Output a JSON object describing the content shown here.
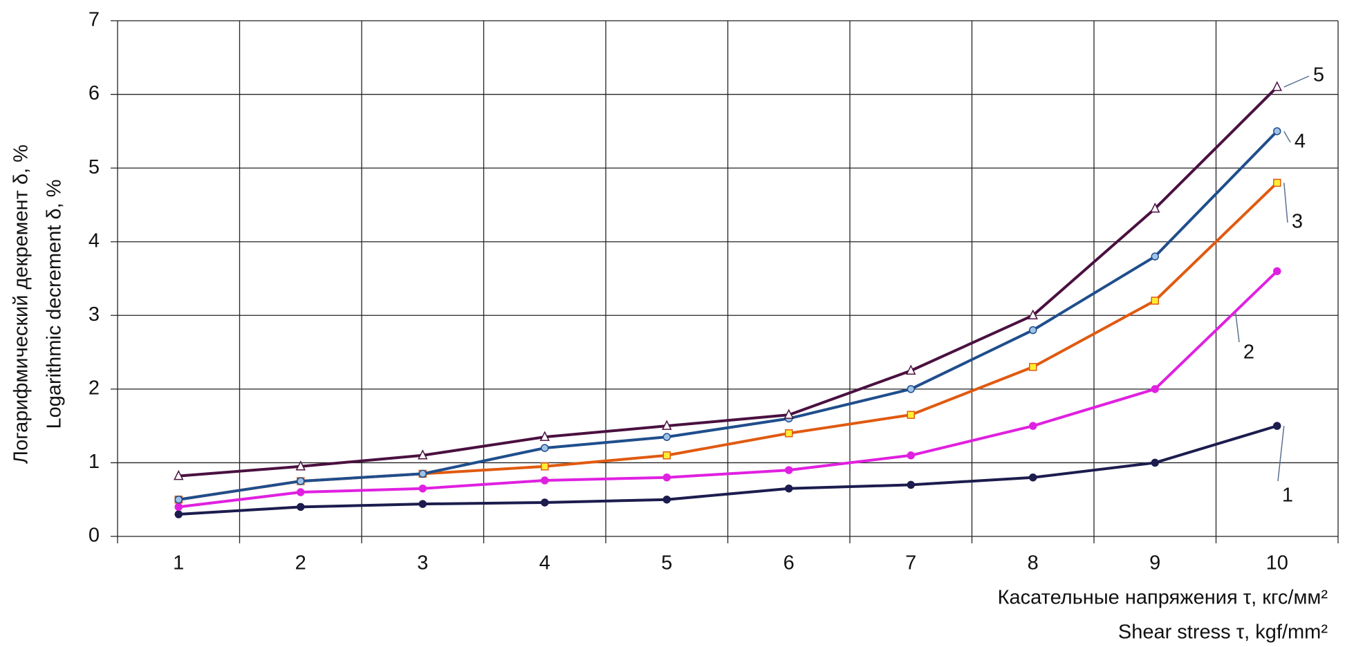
{
  "chart_data": {
    "type": "line",
    "y_label": [
      "Логарифмический декремент  δ, %",
      "Logarithmic decrement δ, %"
    ],
    "x_label": [
      "Касательные напряжения τ, кгс/мм²",
      "Shear stress  τ, kgf/mm²"
    ],
    "categories": [
      "1",
      "2",
      "3",
      "4",
      "5",
      "6",
      "7",
      "8",
      "9",
      "10"
    ],
    "ylim": [
      0,
      7
    ],
    "yticks": [
      0,
      1,
      2,
      3,
      4,
      5,
      6,
      7
    ],
    "grid": true,
    "series": [
      {
        "name": "1",
        "color": "#1c1c4e",
        "marker": "circle",
        "marker_fill": "#1c1c4e",
        "values": [
          0.3,
          0.4,
          0.44,
          0.46,
          0.5,
          0.65,
          0.7,
          0.8,
          1.0,
          1.5
        ]
      },
      {
        "name": "2",
        "color": "#e020e0",
        "marker": "circle",
        "marker_fill": "#e020e0",
        "values": [
          0.4,
          0.6,
          0.65,
          0.76,
          0.8,
          0.9,
          1.1,
          1.5,
          2.0,
          3.6
        ]
      },
      {
        "name": "3",
        "color": "#e05a10",
        "marker": "square",
        "marker_fill": "#ffee33",
        "values": [
          0.5,
          0.75,
          0.85,
          0.95,
          1.1,
          1.4,
          1.65,
          2.3,
          3.2,
          4.8
        ]
      },
      {
        "name": "4",
        "color": "#1f4e8c",
        "marker": "circle",
        "marker_fill": "#9fc3e8",
        "values": [
          0.5,
          0.75,
          0.85,
          1.2,
          1.35,
          1.6,
          2.0,
          2.8,
          3.8,
          5.5
        ]
      },
      {
        "name": "5",
        "color": "#4a1040",
        "marker": "triangle",
        "marker_fill": "#ffffff",
        "values": [
          0.82,
          0.95,
          1.1,
          1.35,
          1.5,
          1.65,
          2.25,
          3.0,
          4.45,
          6.1
        ]
      }
    ]
  }
}
